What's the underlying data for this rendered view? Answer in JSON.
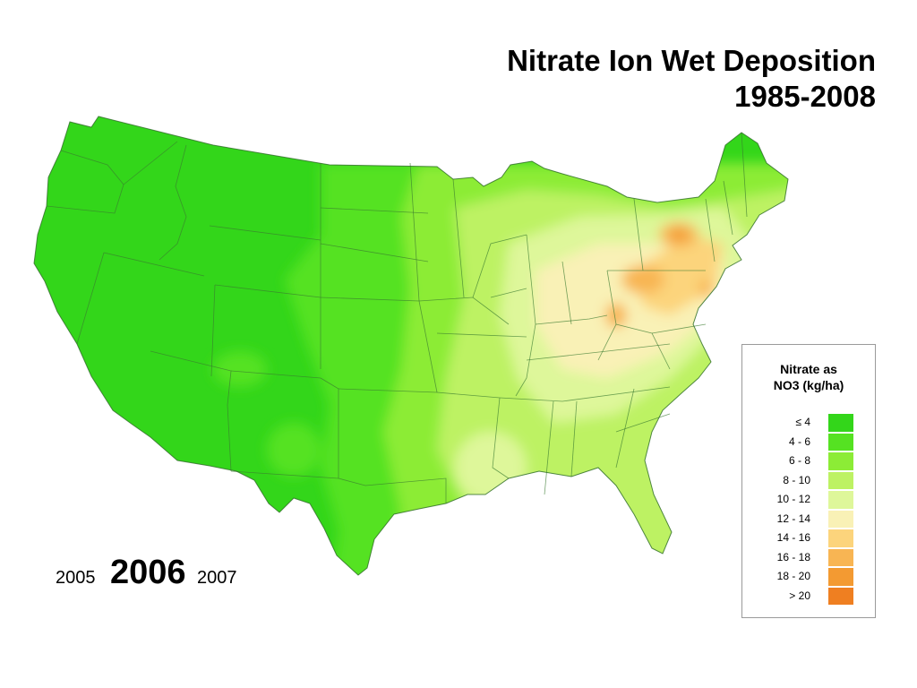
{
  "title": {
    "line1": "Nitrate Ion Wet Deposition",
    "line2": "1985-2008"
  },
  "years": {
    "prev": "2005",
    "current": "2006",
    "next": "2007"
  },
  "legend": {
    "title_line1": "Nitrate as",
    "title_line2": "NO3  (kg/ha)",
    "items": [
      {
        "label": "≤ 4",
        "color": "#33d61a"
      },
      {
        "label": "4 - 6",
        "color": "#55e222"
      },
      {
        "label": "6 - 8",
        "color": "#8cec36"
      },
      {
        "label": "8 - 10",
        "color": "#bdf263"
      },
      {
        "label": "10 - 12",
        "color": "#def79a"
      },
      {
        "label": "12 - 14",
        "color": "#f9f1b6"
      },
      {
        "label": "14 - 16",
        "color": "#fcd47c"
      },
      {
        "label": "16 - 18",
        "color": "#f8b553"
      },
      {
        "label": "18 - 20",
        "color": "#f39a32"
      },
      {
        "label": "> 20",
        "color": "#ef7f21"
      }
    ]
  }
}
